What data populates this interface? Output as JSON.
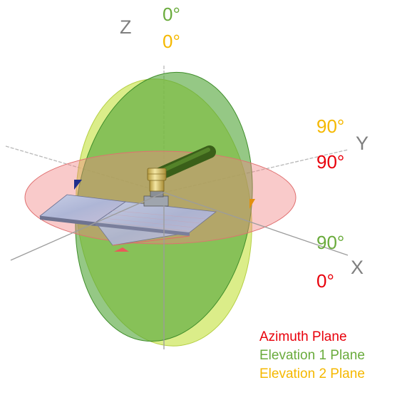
{
  "axes": {
    "z_label": "Z",
    "y_label": "Y",
    "x_label": "X"
  },
  "angles": {
    "z_elev1": "0°",
    "z_elev2": "0°",
    "y_elev2": "90°",
    "y_azimuth": "90°",
    "x_elev1": "90°",
    "x_azimuth": "0°"
  },
  "legend": {
    "azimuth": "Azimuth Plane",
    "elevation1": "Elevation 1 Plane",
    "elevation2": "Elevation 2 Plane"
  },
  "colors": {
    "azimuth": "#e8000b",
    "elevation1": "#6aab3c",
    "elevation2": "#f5b800",
    "axis_text": "#7f7f7f"
  }
}
